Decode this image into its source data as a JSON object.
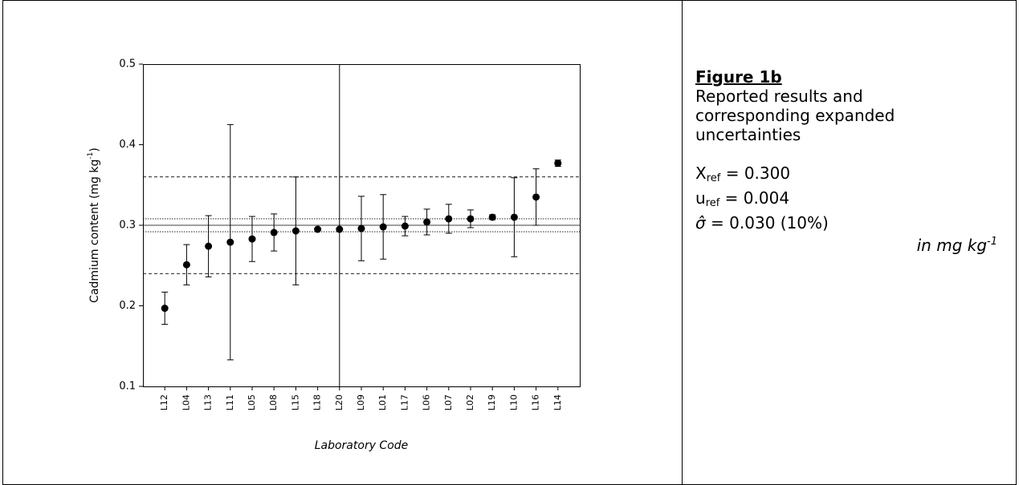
{
  "chart_data": {
    "type": "errorbar",
    "xlabel": "Laboratory Code",
    "ylabel": {
      "text": "Cadmium content (mg kg",
      "sup": "-1",
      "end": ")"
    },
    "categories": [
      "L12",
      "L04",
      "L13",
      "L11",
      "L05",
      "L08",
      "L15",
      "L18",
      "L20",
      "L09",
      "L01",
      "L17",
      "L06",
      "L07",
      "L02",
      "L19",
      "L10",
      "L16",
      "L14"
    ],
    "values": [
      0.197,
      0.251,
      0.274,
      0.279,
      0.283,
      0.291,
      0.293,
      0.295,
      0.295,
      0.296,
      0.298,
      0.299,
      0.304,
      0.308,
      0.308,
      0.31,
      0.31,
      0.335,
      0.377
    ],
    "errors": [
      0.02,
      0.025,
      0.038,
      0.146,
      0.028,
      0.023,
      0.067,
      0,
      0.3,
      0.04,
      0.04,
      0.012,
      0.016,
      0.018,
      0.011,
      0.003,
      0.049,
      0.035,
      0.004
    ],
    "color": "#000000",
    "ylim": [
      0.1,
      0.5
    ],
    "yticks": [
      0.1,
      0.2,
      0.3,
      0.4,
      0.5
    ],
    "reference_lines": [
      {
        "value": 0.36,
        "style": "dashed"
      },
      {
        "value": 0.308,
        "style": "dotted"
      },
      {
        "value": 0.3,
        "style": "solid"
      },
      {
        "value": 0.292,
        "style": "dotted"
      },
      {
        "value": 0.24,
        "style": "dashed"
      }
    ]
  },
  "panel": {
    "figure_label": "Figure 1b",
    "caption": [
      "Reported results and",
      "corresponding expanded",
      "uncertainties"
    ],
    "params": [
      {
        "symbol": "X",
        "sub": "ref",
        "text": " = 0.300"
      },
      {
        "symbol": "u",
        "sub": "ref",
        "text": " = 0.004"
      },
      {
        "symbol": "σ̂",
        "sub": "",
        "text": "  = 0.030 (10%)"
      }
    ],
    "units": {
      "text": "in mg kg",
      "sup": "-1"
    }
  }
}
